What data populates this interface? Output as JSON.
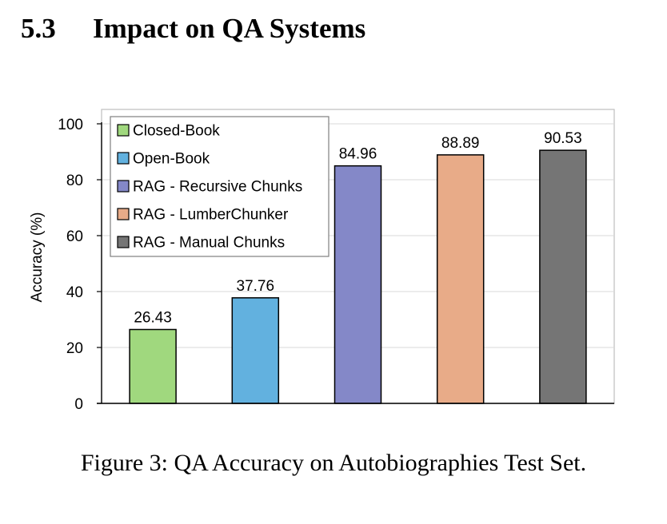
{
  "section": {
    "number": "5.3",
    "title": "Impact on QA Systems"
  },
  "caption": "Figure 3: QA Accuracy on Autobiographies Test Set.",
  "chart_data": {
    "type": "bar",
    "title": "",
    "xlabel": "",
    "ylabel": "Accuracy (%)",
    "ylim": [
      0,
      100
    ],
    "yticks": [
      0,
      20,
      40,
      60,
      80,
      100
    ],
    "grid": true,
    "legend_position": "top-left",
    "series": [
      {
        "name": "Closed-Book",
        "value": 26.43,
        "label": "26.43",
        "color": "#a0d87e"
      },
      {
        "name": "Open-Book",
        "value": 37.76,
        "label": "37.76",
        "color": "#62b1df"
      },
      {
        "name": "RAG - Recursive Chunks",
        "value": 84.96,
        "label": "84.96",
        "color": "#8488c8"
      },
      {
        "name": "RAG - LumberChunker",
        "value": 88.89,
        "label": "88.89",
        "color": "#e8ab88"
      },
      {
        "name": "RAG - Manual Chunks",
        "value": 90.53,
        "label": "90.53",
        "color": "#757575"
      }
    ]
  }
}
